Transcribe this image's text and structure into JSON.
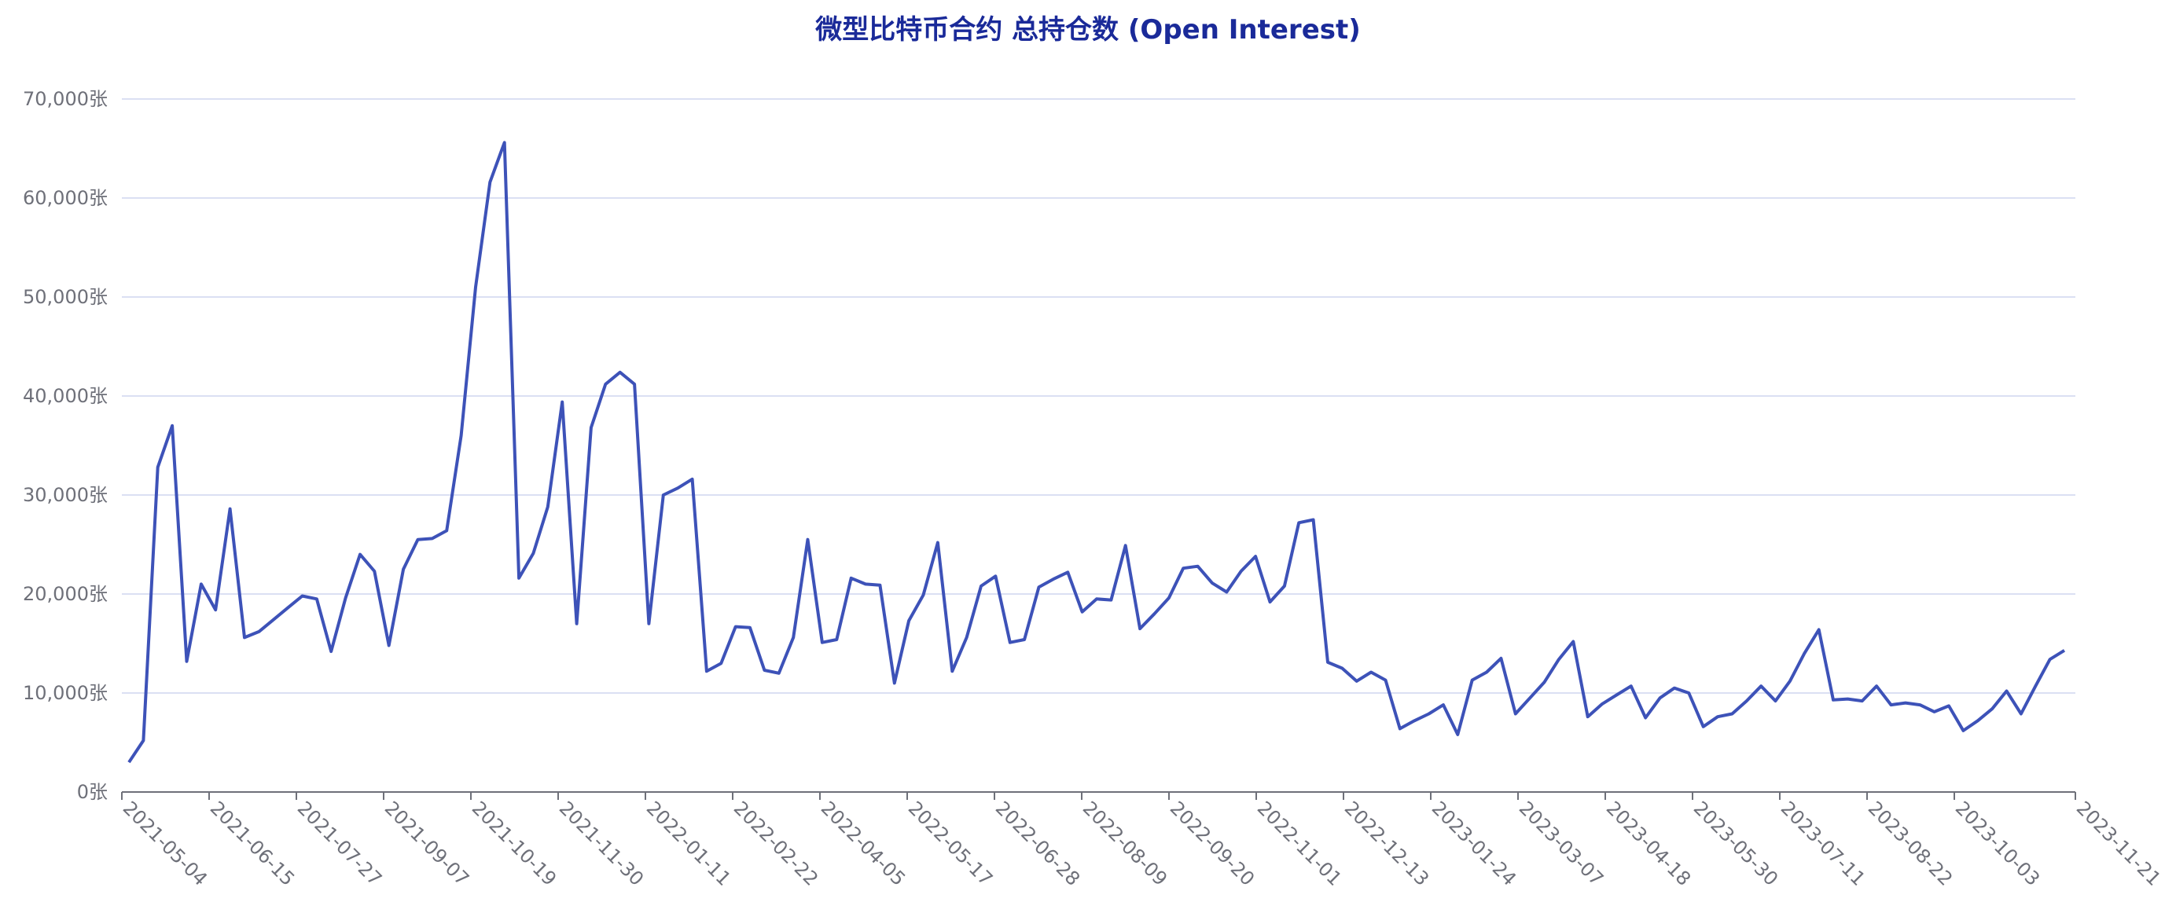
{
  "chart_data": {
    "type": "line",
    "title": "微型比特币合约 总持仓数 (Open Interest)",
    "xlabel": "",
    "ylabel": "",
    "y_unit_suffix": "张",
    "ylim": [
      0,
      70000
    ],
    "y_ticks": [
      0,
      10000,
      20000,
      30000,
      40000,
      50000,
      60000,
      70000
    ],
    "y_tick_labels": [
      "0张",
      "10,000张",
      "20,000张",
      "30,000张",
      "40,000张",
      "50,000张",
      "60,000张",
      "70,000张"
    ],
    "x_tick_labels": [
      "2021-05-04",
      "2021-06-15",
      "2021-07-27",
      "2021-09-07",
      "2021-10-19",
      "2021-11-30",
      "2022-01-11",
      "2022-02-22",
      "2022-04-05",
      "2022-05-17",
      "2022-06-28",
      "2022-08-09",
      "2022-09-20",
      "2022-11-01",
      "2022-12-13",
      "2023-01-24",
      "2023-03-07",
      "2023-04-18",
      "2023-05-30",
      "2023-07-11",
      "2023-08-22",
      "2023-10-03",
      "2023-11-21"
    ],
    "grid": true,
    "colors": {
      "line": "#3d52b8",
      "title": "#1a2a99",
      "grid": "#dbe0f3",
      "axis": "#6e7079"
    },
    "series": [
      {
        "values": [
          3000,
          5200,
          32800,
          37000,
          13200,
          21000,
          18400,
          28600,
          15600,
          16200,
          17400,
          18600,
          19800,
          19500,
          14200,
          19600,
          24000,
          22300,
          14800,
          22500,
          25500,
          25600,
          26400,
          36000,
          51000,
          61600,
          65600,
          21600,
          24100,
          28800,
          39400,
          17000,
          36800,
          41200,
          42400,
          41200,
          17000,
          30000,
          30700,
          31600,
          12200,
          13000,
          16700,
          16600,
          12300,
          12000,
          15600,
          25500,
          15100,
          15400,
          21600,
          21000,
          20900,
          11000,
          17300,
          19900,
          25200,
          12200,
          15600,
          20800,
          21800,
          15100,
          15400,
          20700,
          21500,
          22200,
          18200,
          19500,
          19400,
          24900,
          16500,
          18000,
          19600,
          22600,
          22800,
          21100,
          20200,
          22300,
          23800,
          19200,
          20800,
          27200,
          27500,
          13100,
          12500,
          11200,
          12100,
          11300,
          6400,
          7200,
          7900,
          8800,
          5800,
          11300,
          12100,
          13500,
          7900,
          9500,
          11100,
          13400,
          15200,
          7600,
          8900,
          9800,
          10700,
          7500,
          9500,
          10500,
          10000,
          6600,
          7600,
          7900,
          9200,
          10700,
          9200,
          11200,
          14000,
          16400,
          9300,
          9400,
          9200,
          10700,
          8800,
          9000,
          8800,
          8100,
          8700,
          6200,
          7200,
          8400,
          10200,
          7900,
          10700,
          13400,
          14300
        ]
      }
    ]
  }
}
